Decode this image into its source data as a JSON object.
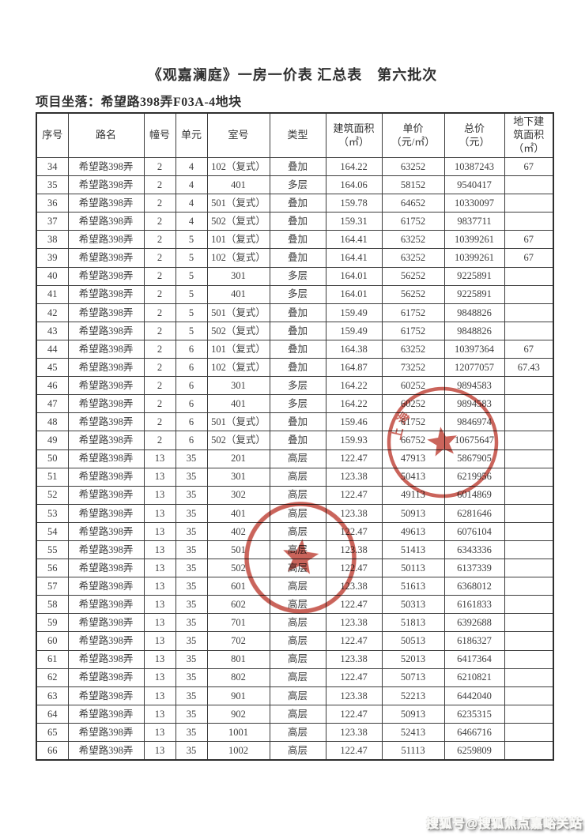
{
  "document": {
    "title": "《观嘉澜庭》一房一价表 汇总表　第六批次",
    "location": "项目坐落：希望路398弄F03A-4地块"
  },
  "table": {
    "headers": [
      "序号",
      "路名",
      "幢号",
      "单元",
      "室号",
      "类型",
      "建筑面积\n（㎡）",
      "单价\n（元/㎡）",
      "总价\n（元）",
      "地下建\n筑面积\n（㎡）"
    ],
    "rows": [
      [
        "34",
        "希望路398弄",
        "2",
        "4",
        "102（复式）",
        "叠加",
        "164.22",
        "63252",
        "10387243",
        "67"
      ],
      [
        "35",
        "希望路398弄",
        "2",
        "4",
        "401",
        "多层",
        "164.06",
        "58152",
        "9540417",
        ""
      ],
      [
        "36",
        "希望路398弄",
        "2",
        "4",
        "501（复式）",
        "叠加",
        "159.78",
        "64652",
        "10330097",
        ""
      ],
      [
        "37",
        "希望路398弄",
        "2",
        "4",
        "502（复式）",
        "叠加",
        "159.31",
        "61752",
        "9837711",
        ""
      ],
      [
        "38",
        "希望路398弄",
        "2",
        "5",
        "101（复式）",
        "叠加",
        "164.41",
        "63252",
        "10399261",
        "67"
      ],
      [
        "39",
        "希望路398弄",
        "2",
        "5",
        "102（复式）",
        "叠加",
        "164.41",
        "63252",
        "10399261",
        "67"
      ],
      [
        "40",
        "希望路398弄",
        "2",
        "5",
        "301",
        "多层",
        "164.01",
        "56252",
        "9225891",
        ""
      ],
      [
        "41",
        "希望路398弄",
        "2",
        "5",
        "401",
        "多层",
        "164.01",
        "56252",
        "9225891",
        ""
      ],
      [
        "42",
        "希望路398弄",
        "2",
        "5",
        "501（复式）",
        "叠加",
        "159.49",
        "61752",
        "9848826",
        ""
      ],
      [
        "43",
        "希望路398弄",
        "2",
        "5",
        "502（复式）",
        "叠加",
        "159.49",
        "61752",
        "9848826",
        ""
      ],
      [
        "44",
        "希望路398弄",
        "2",
        "6",
        "101（复式）",
        "叠加",
        "164.38",
        "63252",
        "10397364",
        "67"
      ],
      [
        "45",
        "希望路398弄",
        "2",
        "6",
        "102（复式）",
        "叠加",
        "164.87",
        "73252",
        "12077057",
        "67.43"
      ],
      [
        "46",
        "希望路398弄",
        "2",
        "6",
        "301",
        "多层",
        "164.22",
        "60252",
        "9894583",
        ""
      ],
      [
        "47",
        "希望路398弄",
        "2",
        "6",
        "401",
        "多层",
        "164.22",
        "60252",
        "9894583",
        ""
      ],
      [
        "48",
        "希望路398弄",
        "2",
        "6",
        "501（复式）",
        "叠加",
        "159.46",
        "61752",
        "9846974",
        ""
      ],
      [
        "49",
        "希望路398弄",
        "2",
        "6",
        "502（复式）",
        "叠加",
        "159.93",
        "66752",
        "10675647",
        ""
      ],
      [
        "50",
        "希望路398弄",
        "13",
        "35",
        "201",
        "高层",
        "122.47",
        "47913",
        "5867905",
        ""
      ],
      [
        "51",
        "希望路398弄",
        "13",
        "35",
        "301",
        "高层",
        "123.38",
        "50413",
        "6219956",
        ""
      ],
      [
        "52",
        "希望路398弄",
        "13",
        "35",
        "302",
        "高层",
        "122.47",
        "49113",
        "6014869",
        ""
      ],
      [
        "53",
        "希望路398弄",
        "13",
        "35",
        "401",
        "高层",
        "123.38",
        "50913",
        "6281646",
        ""
      ],
      [
        "54",
        "希望路398弄",
        "13",
        "35",
        "402",
        "高层",
        "122.47",
        "49613",
        "6076104",
        ""
      ],
      [
        "55",
        "希望路398弄",
        "13",
        "35",
        "501",
        "高层",
        "123.38",
        "51413",
        "6343336",
        ""
      ],
      [
        "56",
        "希望路398弄",
        "13",
        "35",
        "502",
        "高层",
        "122.47",
        "50113",
        "6137339",
        ""
      ],
      [
        "57",
        "希望路398弄",
        "13",
        "35",
        "601",
        "高层",
        "123.38",
        "51613",
        "6368012",
        ""
      ],
      [
        "58",
        "希望路398弄",
        "13",
        "35",
        "602",
        "高层",
        "122.47",
        "50313",
        "6161833",
        ""
      ],
      [
        "59",
        "希望路398弄",
        "13",
        "35",
        "701",
        "高层",
        "123.38",
        "51813",
        "6392688",
        ""
      ],
      [
        "60",
        "希望路398弄",
        "13",
        "35",
        "702",
        "高层",
        "122.47",
        "50513",
        "6186327",
        ""
      ],
      [
        "61",
        "希望路398弄",
        "13",
        "35",
        "801",
        "高层",
        "123.38",
        "52013",
        "6417364",
        ""
      ],
      [
        "62",
        "希望路398弄",
        "13",
        "35",
        "802",
        "高层",
        "122.47",
        "50713",
        "6210821",
        ""
      ],
      [
        "63",
        "希望路398弄",
        "13",
        "35",
        "901",
        "高层",
        "123.38",
        "52213",
        "6442040",
        ""
      ],
      [
        "64",
        "希望路398弄",
        "13",
        "35",
        "902",
        "高层",
        "122.47",
        "50913",
        "6235315",
        ""
      ],
      [
        "65",
        "希望路398弄",
        "13",
        "35",
        "1001",
        "高层",
        "123.38",
        "52413",
        "6466716",
        ""
      ],
      [
        "66",
        "希望路398弄",
        "13",
        "35",
        "1002",
        "高层",
        "122.47",
        "51113",
        "6259809",
        ""
      ]
    ]
  },
  "stamps": {
    "color": "#bf4136",
    "top_seal": {
      "visible_text": "上海"
    },
    "bottom_seal": {
      "visible_text": ""
    }
  },
  "watermark": {
    "text": "搜狐号@搜狐焦点嘉峪关站"
  }
}
